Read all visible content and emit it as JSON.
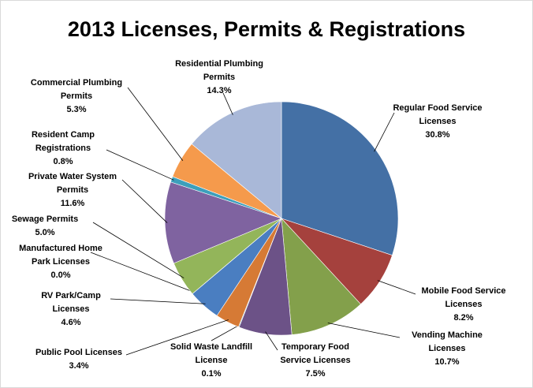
{
  "chart_data": {
    "type": "pie",
    "title": "2013 Licenses, Permits & Registrations",
    "categories": [
      "Regular Food Service\nLicenses",
      "Mobile Food Service\nLicenses",
      "Vending Machine\nLicenses",
      "Temporary Food\nService Licenses",
      "Solid Waste Landfill\nLicense",
      "Public Pool Licenses",
      "RV Park/Camp\nLicenses",
      "Manufactured Home\nPark Licenses",
      "Sewage Permits",
      "Private Water System\nPermits",
      "Resident Camp\nRegistrations",
      "Commercial Plumbing\nPermits",
      "Residential Plumbing\nPermits"
    ],
    "values": [
      30.8,
      8.2,
      10.7,
      7.5,
      0.1,
      3.4,
      4.6,
      0.0,
      5.0,
      11.6,
      0.8,
      5.3,
      14.3
    ],
    "value_labels": [
      "30.8%",
      "8.2%",
      "10.7%",
      "7.5%",
      "0.1%",
      "3.4%",
      "4.6%",
      "0.0%",
      "5.0%",
      "11.6%",
      "0.8%",
      "5.3%",
      "14.3%"
    ],
    "colors": [
      "#4470a5",
      "#a5413d",
      "#83a04b",
      "#6c5287",
      "#3d9fbb",
      "#d67a35",
      "#4a7ec1",
      "#b9cde5",
      "#93b55a",
      "#7f63a0",
      "#3d9fbb",
      "#f59a4c",
      "#a9b8d8"
    ]
  }
}
